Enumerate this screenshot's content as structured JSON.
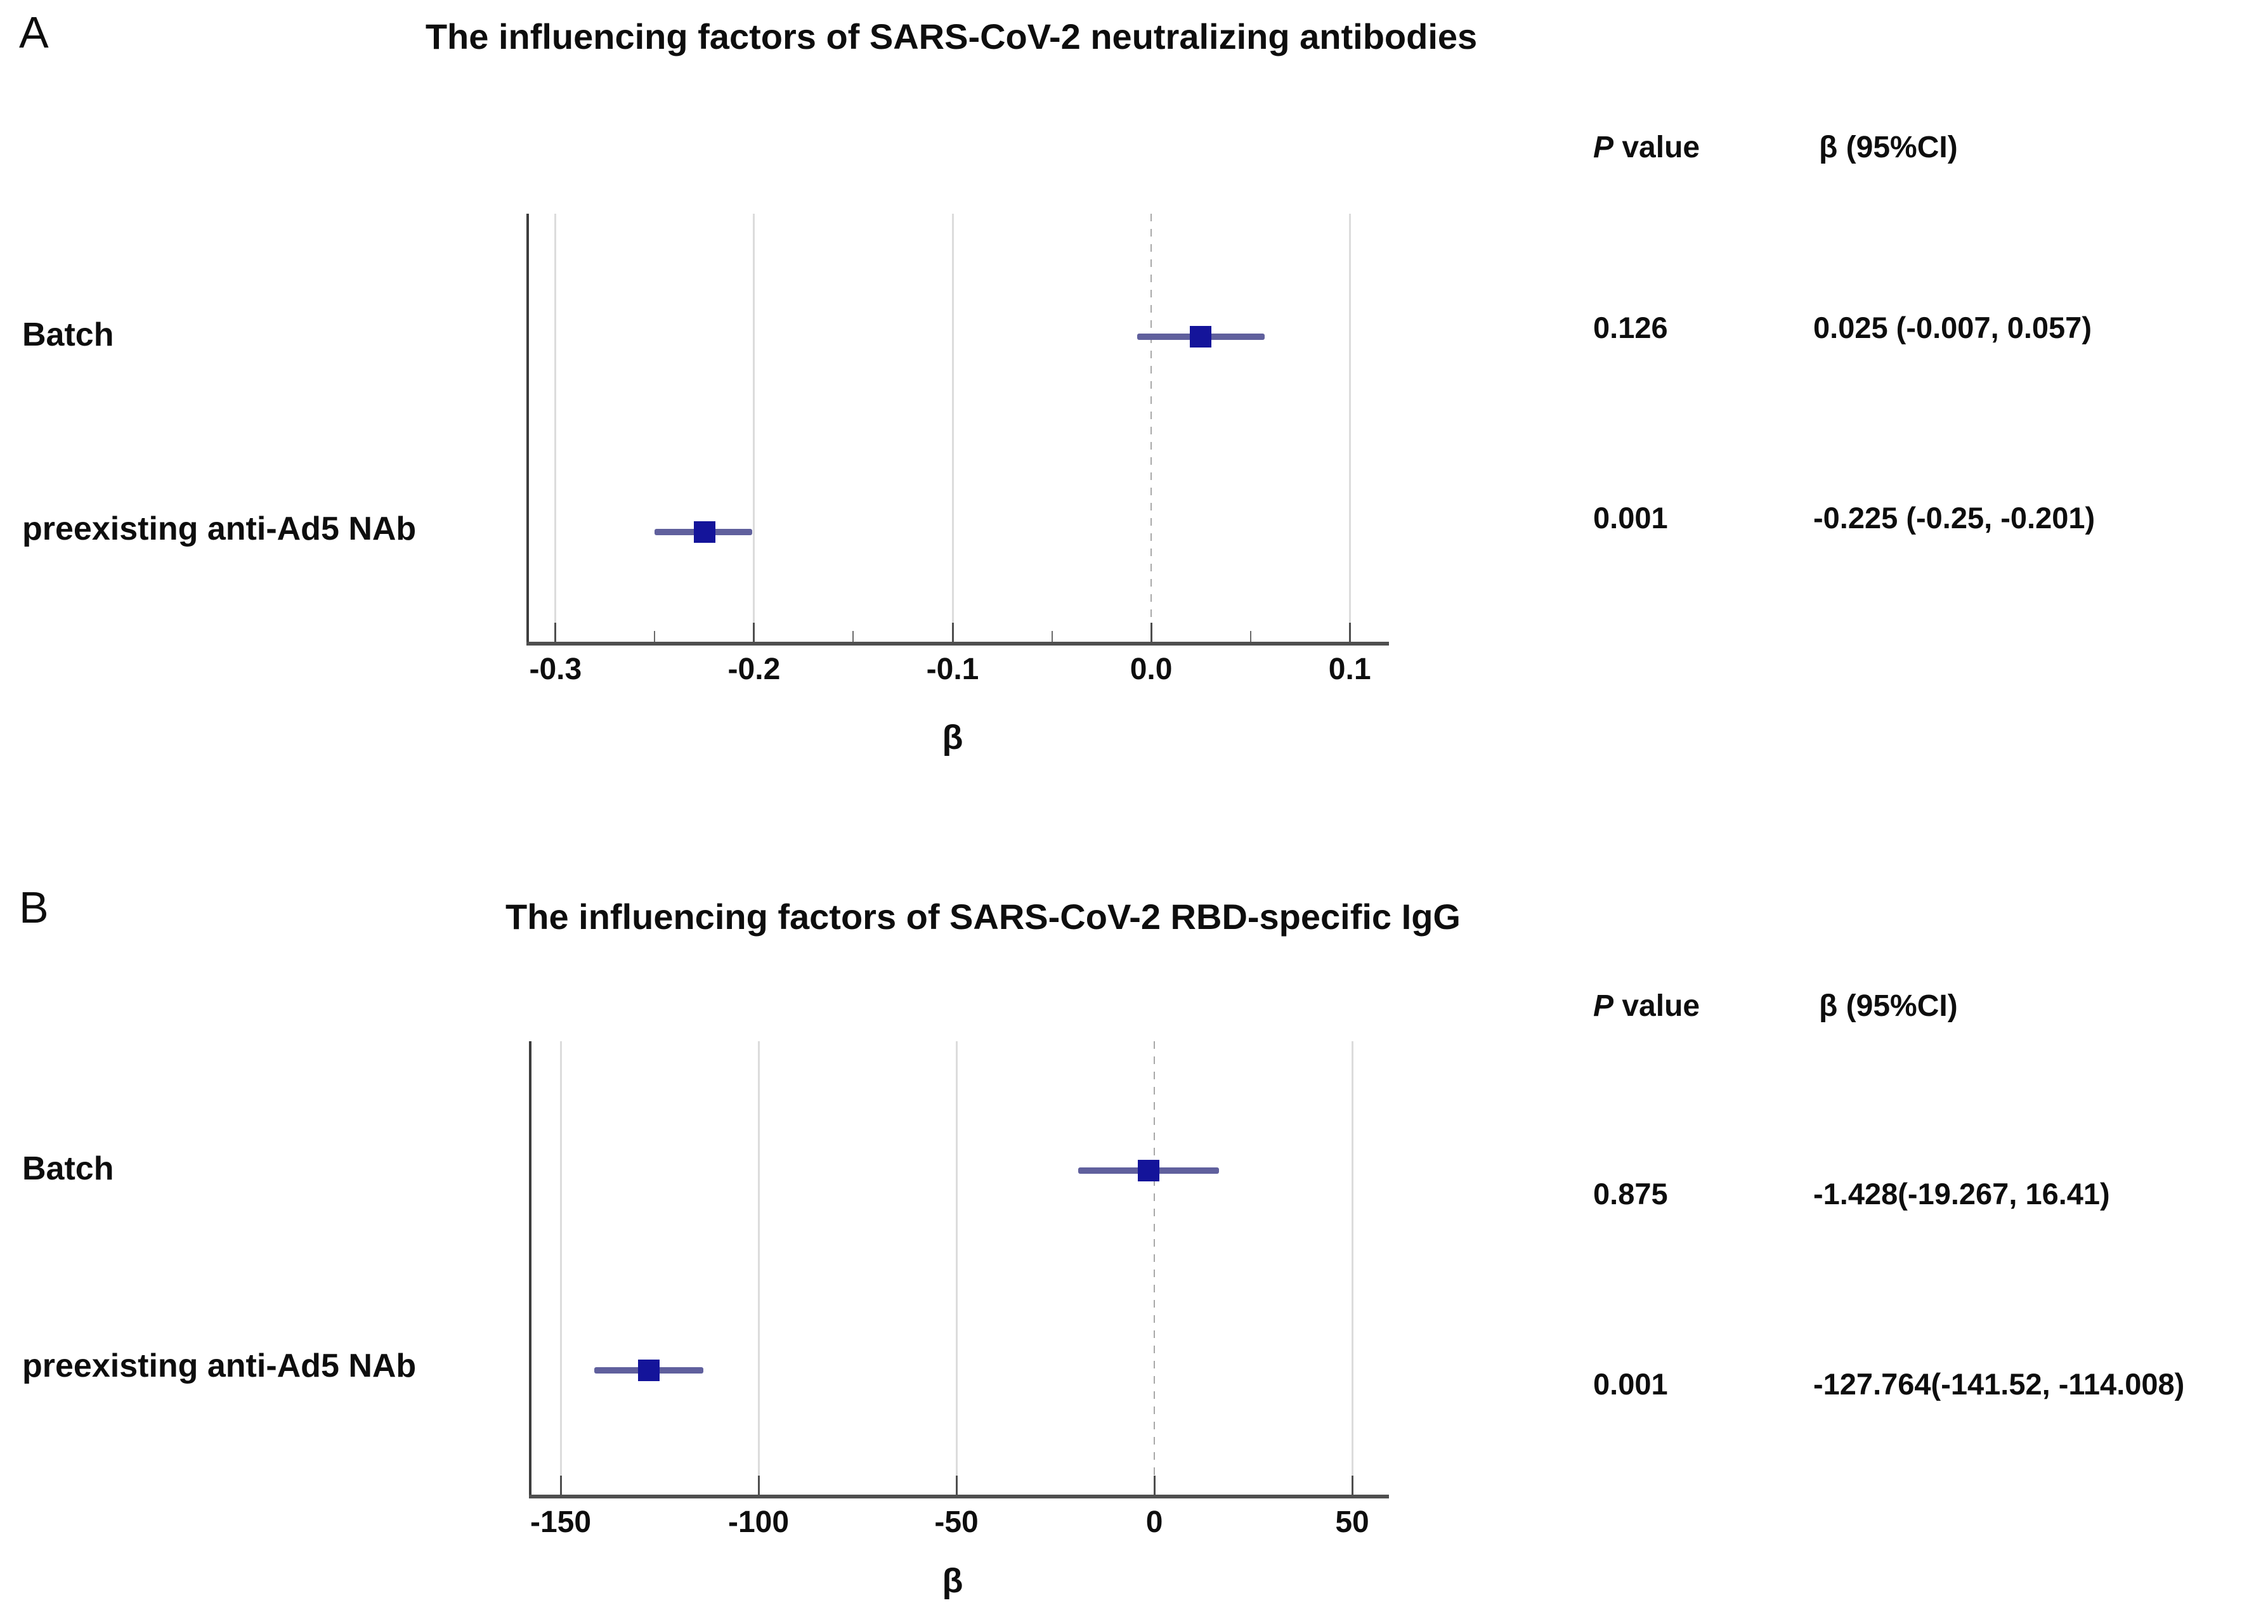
{
  "colors": {
    "marker": "#14149a",
    "error_bar": "#60609d",
    "grid": "#dcdcdc",
    "zero_line": "#a8a8a8",
    "axis": "#4f4f4f",
    "spine": "#3e3e3e",
    "text": "#0e0e0e"
  },
  "chart_data": [
    {
      "type": "scatter",
      "subtype": "forest-plot",
      "panel_label": "A",
      "title": "The influencing factors of SARS-CoV-2 neutralizing antibodies",
      "xlabel": "β",
      "xlim": [
        -0.314,
        0.114
      ],
      "xticks": [
        -0.3,
        -0.2,
        -0.1,
        0.0,
        0.1
      ],
      "xtick_labels": [
        "-0.3",
        "-0.2",
        "-0.1",
        "0.0",
        "0.1"
      ],
      "xticks_minor": [
        -0.25,
        -0.15,
        -0.05,
        0.05
      ],
      "zero_reference_line": 0,
      "grid": "vertical gridlines at major ticks, dashed line at 0",
      "legend": "none",
      "columns": {
        "p_italic": "P",
        "p_rest": " value",
        "beta_header": "β (95%CI)"
      },
      "rows": [
        {
          "label": "Batch",
          "beta": 0.025,
          "ci_low": -0.007,
          "ci_high": 0.057,
          "p_text": "0.126",
          "beta_ci_text": "0.025 (-0.007, 0.057)"
        },
        {
          "label": "preexisting anti-Ad5 NAb",
          "beta": -0.225,
          "ci_low": -0.25,
          "ci_high": -0.201,
          "p_text": "0.001",
          "beta_ci_text": "-0.225 (-0.25, -0.201)"
        }
      ]
    },
    {
      "type": "scatter",
      "subtype": "forest-plot",
      "panel_label": "B",
      "title": "The influencing factors of SARS-CoV-2 RBD-specific IgG",
      "xlabel": "β",
      "xlim": [
        -157.7,
        56.4
      ],
      "xticks": [
        -150,
        -100,
        -50,
        0,
        50
      ],
      "xtick_labels": [
        "-150",
        "-100",
        "-50",
        "0",
        "50"
      ],
      "xticks_minor": [],
      "zero_reference_line": 0,
      "grid": "vertical gridlines at major ticks, dashed line at 0",
      "legend": "none",
      "columns": {
        "p_italic": "P",
        "p_rest": " value",
        "beta_header": "β (95%CI)"
      },
      "rows": [
        {
          "label": "Batch",
          "beta": -1.428,
          "ci_low": -19.267,
          "ci_high": 16.41,
          "p_text": "0.875",
          "beta_ci_text": "-1.428(-19.267, 16.41)"
        },
        {
          "label": "preexisting anti-Ad5 NAb",
          "beta": -127.764,
          "ci_low": -141.52,
          "ci_high": -114.008,
          "p_text": "0.001",
          "beta_ci_text": "-127.764(-141.52, -114.008)"
        }
      ]
    }
  ]
}
